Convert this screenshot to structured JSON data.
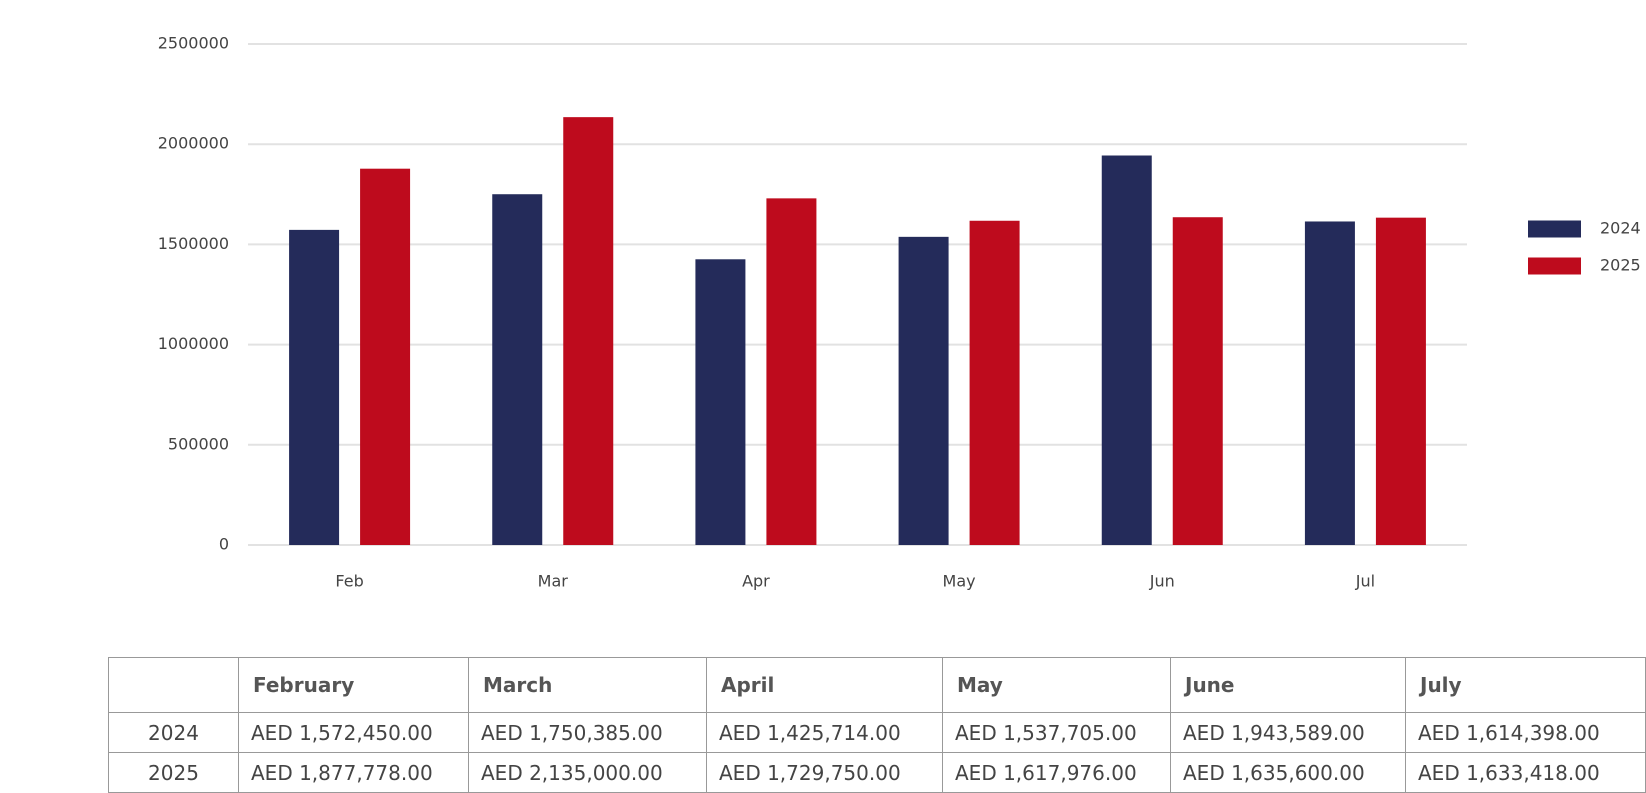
{
  "chart_data": {
    "type": "bar",
    "categories": [
      "Feb",
      "Mar",
      "Apr",
      "May",
      "Jun",
      "Jul"
    ],
    "series": [
      {
        "name": "2024",
        "color": "#242b5a",
        "values": [
          1572450,
          1750385,
          1425714,
          1537705,
          1943589,
          1614398
        ]
      },
      {
        "name": "2025",
        "color": "#be0b1d",
        "values": [
          1877778,
          2135000,
          1729750,
          1617976,
          1635600,
          1633418
        ]
      }
    ],
    "ylim": [
      0,
      2500000
    ],
    "yticks": [
      0,
      500000,
      1000000,
      1500000,
      2000000,
      2500000
    ],
    "grid": true,
    "legend": "right"
  },
  "table": {
    "columns": [
      "February",
      "March",
      "April",
      "May",
      "June",
      "July"
    ],
    "rows": [
      {
        "label": "2024",
        "cells": [
          "AED 1,572,450.00",
          "AED 1,750,385.00",
          "AED 1,425,714.00",
          "AED 1,537,705.00",
          "AED 1,943,589.00",
          "AED 1,614,398.00"
        ]
      },
      {
        "label": "2025",
        "cells": [
          "AED 1,877,778.00",
          "AED 2,135,000.00",
          "AED 1,729,750.00",
          "AED 1,617,976.00",
          "AED 1,635,600.00",
          "AED 1,633,418.00"
        ]
      }
    ]
  }
}
